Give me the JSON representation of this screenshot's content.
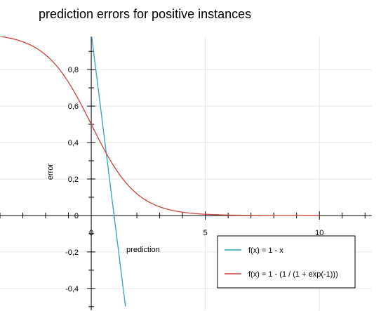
{
  "chart_data": {
    "type": "line",
    "title": "prediction errors for positive instances",
    "xlabel": "prediction",
    "ylabel": "error",
    "xlim": [
      -4,
      12.3
    ],
    "ylim": [
      -0.52,
      0.97
    ],
    "x_ticks": [
      0,
      5,
      10
    ],
    "y_ticks": [
      -0.4,
      -0.2,
      0,
      0.2,
      0.4,
      0.6,
      0.8
    ],
    "x_tick_labels": [
      "0",
      "5",
      "10"
    ],
    "y_tick_labels": [
      "-0,4",
      "-0,2",
      "0",
      "0,2",
      "0,4",
      "0,6",
      "0,8"
    ],
    "grid": true,
    "legend_position": "bottom-right",
    "series": [
      {
        "name": "f(x) = 1 - x",
        "color": "#2aa7c0",
        "x": [
          0,
          1.5
        ],
        "y": [
          1,
          -0.5
        ]
      },
      {
        "name": "f(x) = 1 - (1 / (1 + exp(-1)))",
        "color": "#c9433f",
        "x": [
          -4,
          -3.5,
          -3,
          -2.5,
          -2,
          -1.5,
          -1,
          -0.5,
          0,
          0.5,
          1,
          1.5,
          2,
          2.5,
          3,
          3.5,
          4,
          4.5,
          5,
          6,
          7,
          8,
          9,
          10
        ],
        "y": [
          0.982,
          0.971,
          0.953,
          0.924,
          0.881,
          0.818,
          0.731,
          0.622,
          0.5,
          0.378,
          0.269,
          0.182,
          0.119,
          0.076,
          0.047,
          0.029,
          0.018,
          0.011,
          0.007,
          0.002,
          0.001,
          0.0,
          0.0,
          0.0
        ]
      }
    ]
  }
}
